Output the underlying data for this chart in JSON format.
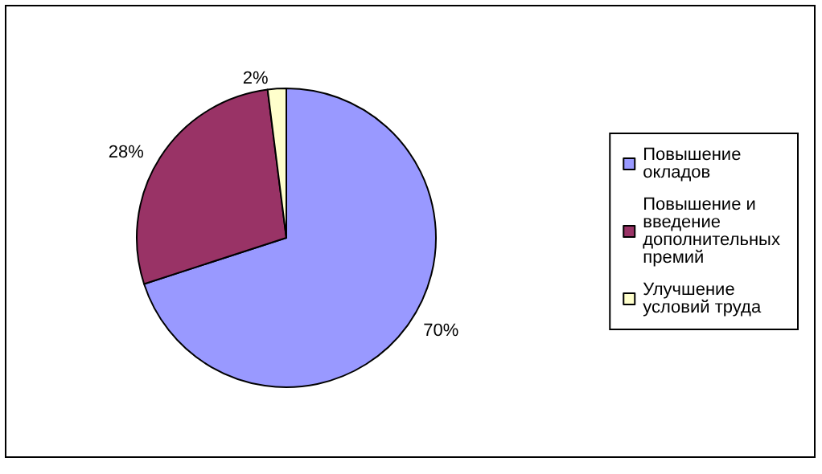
{
  "chart_data": {
    "type": "pie",
    "categories": [
      "Повышение окладов",
      "Повышение и введение дополнительных премий",
      "Улучшение условий труда"
    ],
    "values": [
      70,
      28,
      2
    ],
    "value_labels": [
      "70%",
      "28%",
      "2%"
    ],
    "colors": [
      "#9999ff",
      "#993366",
      "#ffffcc"
    ],
    "legend": "right"
  }
}
